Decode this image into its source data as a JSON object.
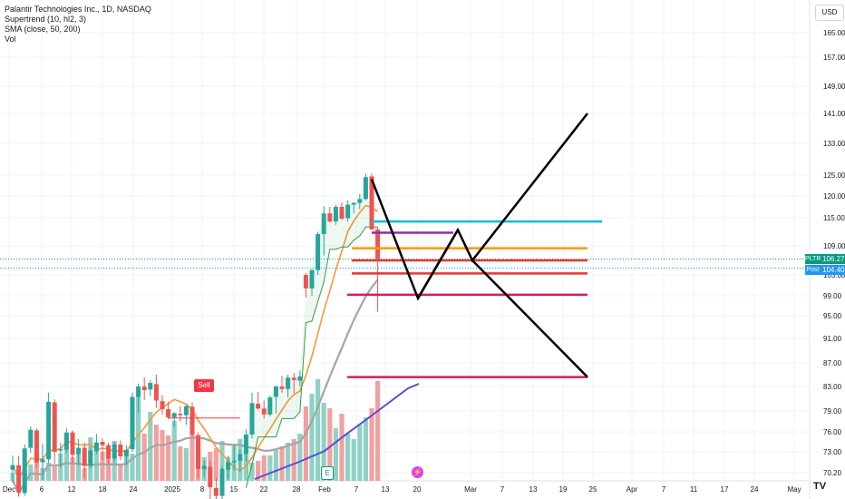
{
  "legend": {
    "title": "Palantir Technologies Inc., 1D, NASDAQ",
    "supertrend": "Supertrend (10, hl2, 3)",
    "sma": "SMA (close, 50, 200)",
    "vol": "Vol"
  },
  "currency_button": "USD",
  "last_price": {
    "symbol": "PLTR",
    "value": "106.27",
    "post_label": "Post",
    "post_value": "104.40"
  },
  "badges": {
    "sell": "Sell",
    "earnings": "E",
    "dividend_icon": "lightning-icon"
  },
  "chart_logo": "TV",
  "colors": {
    "up": "#26a69a",
    "down": "#ef5350",
    "vol_up": "#8fd1c5",
    "vol_down": "#f2a0a0",
    "sma50": "#f59a3a",
    "sma200": "#a5a5a5",
    "supertrend_up": "#2e9e45",
    "supertrend_down": "#f23645",
    "blue_line": "#5b4ccf"
  },
  "chart_data": {
    "type": "candlestick",
    "y_ticks": [
      "165.00",
      "157.00",
      "149.00",
      "141.00",
      "133.00",
      "125.00",
      "120.00",
      "115.00",
      "109.00",
      "103.00",
      "99.00",
      "95.00",
      "91.00",
      "87.00",
      "83.00",
      "79.00",
      "76.00",
      "73.00",
      "70.20"
    ],
    "x_ticks": [
      "Dec",
      "6",
      "12",
      "18",
      "24",
      "2025",
      "8",
      "15",
      "22",
      "28",
      "Feb",
      "7",
      "13",
      "20",
      "Mar",
      "7",
      "13",
      "19",
      "25",
      "Apr",
      "7",
      "11",
      "17",
      "24",
      "May"
    ],
    "ohlc": [
      [
        70.6,
        72.5,
        68.8,
        71.2
      ],
      [
        71.2,
        72.4,
        66.9,
        67.5
      ],
      [
        67.4,
        74.1,
        67.0,
        73.5
      ],
      [
        73.6,
        76.8,
        72.9,
        76.3
      ],
      [
        76.2,
        76.5,
        70.9,
        71.6
      ],
      [
        71.6,
        74.2,
        69.2,
        72.0
      ],
      [
        72.0,
        82.0,
        71.5,
        80.5
      ],
      [
        80.4,
        80.9,
        71.4,
        73.0
      ],
      [
        73.2,
        74.4,
        71.0,
        73.4
      ],
      [
        73.3,
        76.5,
        72.8,
        75.9
      ],
      [
        75.9,
        76.2,
        71.5,
        72.6
      ],
      [
        72.7,
        74.9,
        71.2,
        73.6
      ],
      [
        73.6,
        74.4,
        69.5,
        71.1
      ],
      [
        71.1,
        73.8,
        70.7,
        73.2
      ],
      [
        73.1,
        75.7,
        72.7,
        74.4
      ],
      [
        74.5,
        75.0,
        71.9,
        74.0
      ],
      [
        74.0,
        74.4,
        71.4,
        72.1
      ],
      [
        72.1,
        74.5,
        71.6,
        74.1
      ],
      [
        74.1,
        74.7,
        71.9,
        72.4
      ],
      [
        72.4,
        74.0,
        71.2,
        73.3
      ],
      [
        73.4,
        82.0,
        73.0,
        81.3
      ],
      [
        81.3,
        83.5,
        78.8,
        83.0
      ],
      [
        83.0,
        84.6,
        80.8,
        82.4
      ],
      [
        82.5,
        84.1,
        81.4,
        83.6
      ],
      [
        83.4,
        85.0,
        79.5,
        80.7
      ],
      [
        80.6,
        81.6,
        78.5,
        79.3
      ],
      [
        79.3,
        80.5,
        77.8,
        78.1
      ],
      [
        78.1,
        78.8,
        76.7,
        78.7
      ],
      [
        78.6,
        79.8,
        77.5,
        78.4
      ],
      [
        78.4,
        80.0,
        77.0,
        79.8
      ],
      [
        79.7,
        80.4,
        75.3,
        75.6
      ],
      [
        75.5,
        75.9,
        69.5,
        70.7
      ],
      [
        70.7,
        71.8,
        69.6,
        71.1
      ],
      [
        71.0,
        71.8,
        66.5,
        68.2
      ],
      [
        68.1,
        69.5,
        66.0,
        67.0
      ],
      [
        67.0,
        71.0,
        65.1,
        70.7
      ],
      [
        70.6,
        72.5,
        69.3,
        71.6
      ],
      [
        71.6,
        74.0,
        70.5,
        71.8
      ],
      [
        71.8,
        73.3,
        70.3,
        72.7
      ],
      [
        72.7,
        76.4,
        71.7,
        75.6
      ],
      [
        75.6,
        82.0,
        75.0,
        80.3
      ],
      [
        80.2,
        82.1,
        79.2,
        79.4
      ],
      [
        79.4,
        80.7,
        77.9,
        78.5
      ],
      [
        78.5,
        81.5,
        78.2,
        81.2
      ],
      [
        81.3,
        83.2,
        78.6,
        83.0
      ],
      [
        83.0,
        84.8,
        82.0,
        82.6
      ],
      [
        82.6,
        85.0,
        81.2,
        84.5
      ],
      [
        84.5,
        85.3,
        81.9,
        84.1
      ],
      [
        84.0,
        85.7,
        83.0,
        84.7
      ],
      [
        103.0,
        103.4,
        98.7,
        100.4
      ],
      [
        100.4,
        104.2,
        99.0,
        104.0
      ],
      [
        104.0,
        112.0,
        103.0,
        111.5
      ],
      [
        111.5,
        117.6,
        107.0,
        116.0
      ],
      [
        116.0,
        117.5,
        114.0,
        114.2
      ],
      [
        114.2,
        118.0,
        113.5,
        117.5
      ],
      [
        117.5,
        118.5,
        114.5,
        114.8
      ],
      [
        114.9,
        119.0,
        114.2,
        118.0
      ],
      [
        118.0,
        118.6,
        116.0,
        118.4
      ],
      [
        118.4,
        120.5,
        117.0,
        119.3
      ],
      [
        119.3,
        125.4,
        119.0,
        124.5
      ],
      [
        124.7,
        125.4,
        112.8,
        112.5
      ],
      [
        112.5,
        113.0,
        95.8,
        106.3
      ]
    ],
    "volume": [
      9,
      12,
      8,
      18,
      30,
      14,
      20,
      16,
      30,
      34,
      26,
      30,
      14,
      48,
      34,
      32,
      26,
      44,
      18,
      28,
      30,
      96,
      52,
      76,
      62,
      56,
      50,
      66,
      38,
      36,
      54,
      42,
      26,
      32,
      36,
      44,
      26,
      40,
      46,
      34,
      20,
      22,
      28,
      28,
      34,
      38,
      42,
      46,
      52,
      82,
      96,
      112,
      86,
      80,
      58,
      74,
      52,
      46,
      62,
      70,
      80,
      110
    ],
    "sma50": [
      null,
      null,
      null,
      null,
      null,
      null,
      null,
      null,
      null,
      null,
      null,
      null,
      null,
      null,
      null,
      null,
      null,
      null,
      null,
      null,
      null,
      null,
      null,
      null,
      null,
      null,
      null,
      null,
      null,
      null,
      null,
      null,
      null,
      null,
      null,
      null,
      null,
      null,
      null,
      null,
      null,
      null,
      null,
      null,
      null,
      null,
      null,
      null,
      null,
      null,
      null,
      null,
      null,
      null,
      null,
      null,
      null,
      null,
      null,
      null,
      null,
      null
    ],
    "supertrend_sell_at": 26,
    "drawings": [
      {
        "name": "cyan-level",
        "price": 114.2,
        "color": "#00bcd4"
      },
      {
        "name": "purple-level",
        "price": 111.8,
        "color": "#9c27b0"
      },
      {
        "name": "orange-level",
        "price": 108.5,
        "color": "#ff9800"
      },
      {
        "name": "red-level-1",
        "price": 106.0,
        "color": "#e53935"
      },
      {
        "name": "red-level-2",
        "price": 103.3,
        "color": "#e53935"
      },
      {
        "name": "crimson-level",
        "price": 99.2,
        "color": "#d81b60"
      },
      {
        "name": "crimson-level-low",
        "price": 84.6,
        "color": "#d81b60"
      }
    ]
  }
}
